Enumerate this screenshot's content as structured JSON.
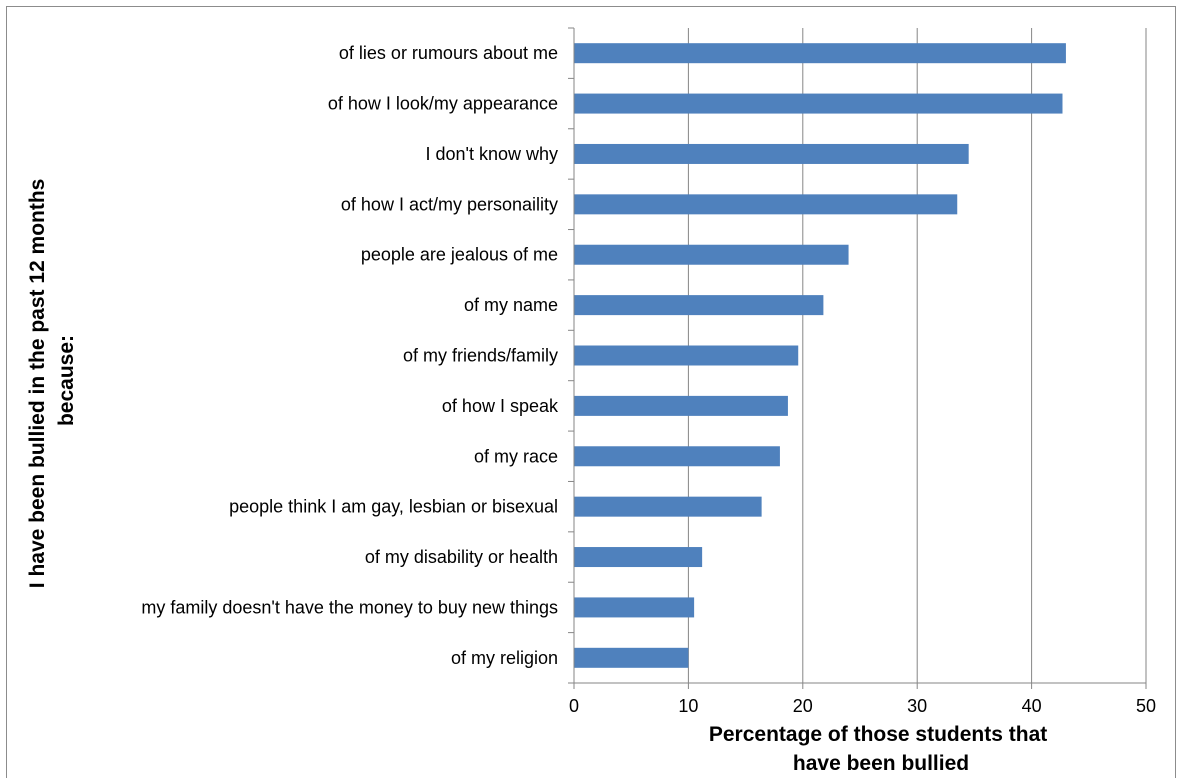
{
  "chart_data": {
    "type": "bar",
    "orientation": "horizontal",
    "categories": [
      "of lies or rumours about me",
      "of how I look/my appearance",
      "I don't know why",
      "of how I act/my personaility",
      "people are jealous of me",
      "of my name",
      "of my friends/family",
      "of how I speak",
      "of my race",
      "people think I am gay, lesbian or bisexual",
      "of my disability or health",
      "my family doesn't have the money to buy new things",
      "of my religion"
    ],
    "values": [
      43.0,
      42.7,
      34.5,
      33.5,
      24.0,
      21.8,
      19.6,
      18.7,
      18.0,
      16.4,
      11.2,
      10.5,
      10.0
    ],
    "xlim": [
      0,
      50
    ],
    "xticks": [
      "0",
      "10",
      "20",
      "30",
      "40",
      "50"
    ],
    "xlabel": [
      "Percentage of those students that",
      "have been bullied"
    ],
    "ylabel": [
      "I have been bullied in the past 12 months",
      "because:"
    ],
    "grid": "vertical",
    "legend": "none",
    "bar_color": "#4f81bd",
    "grid_color": "#868686"
  }
}
